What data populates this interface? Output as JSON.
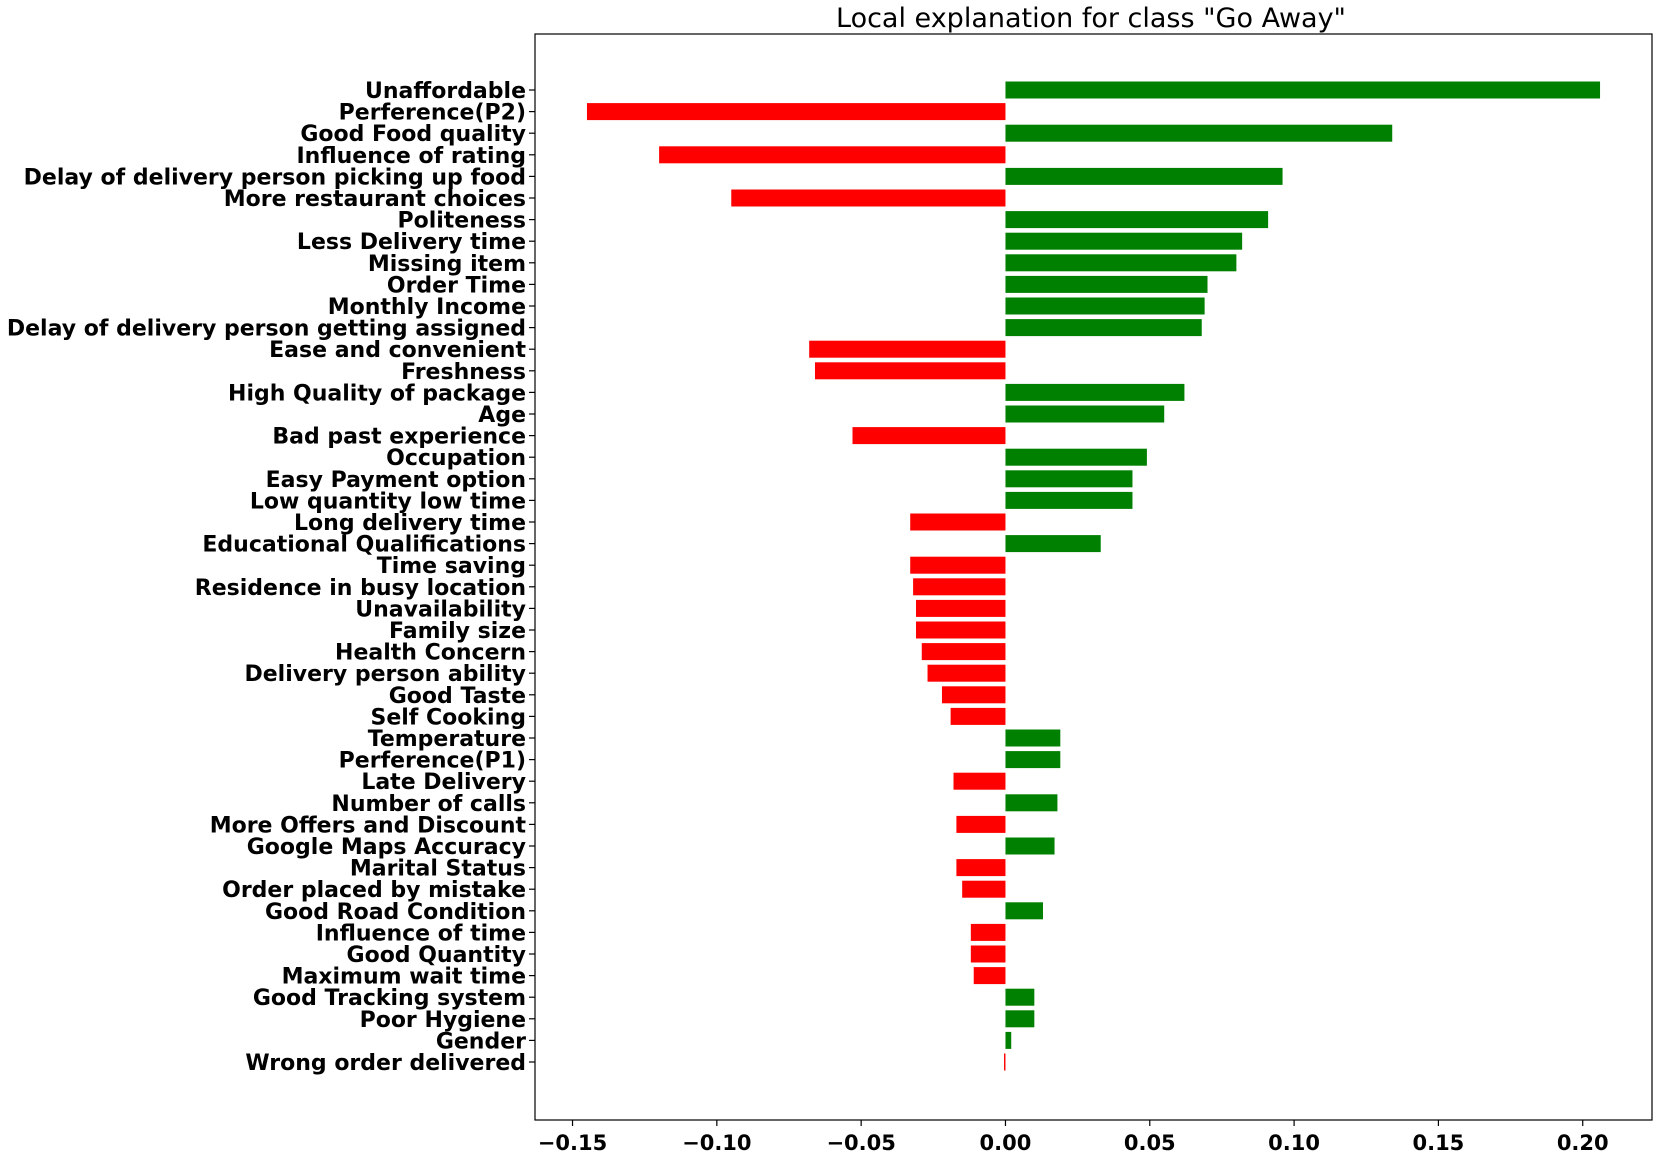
{
  "chart_data": {
    "type": "bar",
    "orientation": "horizontal",
    "title": "Local explanation for class \"Go Away\"",
    "xlabel": "",
    "ylabel": "",
    "xlim": [
      -0.163,
      0.224
    ],
    "xticks": [
      -0.15,
      -0.1,
      -0.05,
      0.0,
      0.05,
      0.1,
      0.15,
      0.2
    ],
    "xtick_labels": [
      "−0.15",
      "−0.10",
      "−0.05",
      "0.00",
      "0.05",
      "0.10",
      "0.15",
      "0.20"
    ],
    "grid": false,
    "legend": "none",
    "colors": {
      "positive": "#008000",
      "negative": "#ff0000"
    },
    "categories": [
      "Unaffordable",
      "Perference(P2)",
      "Good Food quality",
      "Influence of rating",
      "Delay of delivery person picking up food",
      "More restaurant choices",
      "Politeness",
      "Less Delivery time",
      "Missing item",
      "Order Time",
      "Monthly Income",
      "Delay of delivery person getting assigned",
      "Ease and convenient",
      "Freshness ",
      "High Quality of package",
      "Age",
      "Bad past experience",
      "Occupation",
      "Easy Payment option",
      "Low quantity low time",
      "Long delivery time",
      "Educational Qualifications",
      "Time saving",
      "Residence in busy location",
      "Unavailability",
      "Family size",
      "Health Concern",
      "Delivery person ability",
      "Good Taste ",
      "Self Cooking",
      "Temperature",
      "Perference(P1)",
      "Late Delivery",
      "Number of calls",
      "More Offers and Discount",
      "Google Maps Accuracy",
      "Marital Status",
      "Order placed by mistake",
      "Good Road Condition",
      "Influence of time",
      "Good Quantity",
      "Maximum wait time",
      "Good Tracking system",
      "Poor Hygiene",
      "Gender",
      "Wrong order delivered"
    ],
    "values": [
      0.206,
      -0.145,
      0.134,
      -0.12,
      0.096,
      -0.095,
      0.091,
      0.082,
      0.08,
      0.07,
      0.069,
      0.068,
      -0.068,
      -0.066,
      0.062,
      0.055,
      -0.053,
      0.049,
      0.044,
      0.044,
      -0.033,
      0.033,
      -0.033,
      -0.032,
      -0.031,
      -0.031,
      -0.029,
      -0.027,
      -0.022,
      -0.019,
      0.019,
      0.019,
      -0.018,
      0.018,
      -0.017,
      0.017,
      -0.017,
      -0.015,
      0.013,
      -0.012,
      -0.012,
      -0.011,
      0.01,
      0.01,
      0.002,
      -0.0005
    ]
  }
}
